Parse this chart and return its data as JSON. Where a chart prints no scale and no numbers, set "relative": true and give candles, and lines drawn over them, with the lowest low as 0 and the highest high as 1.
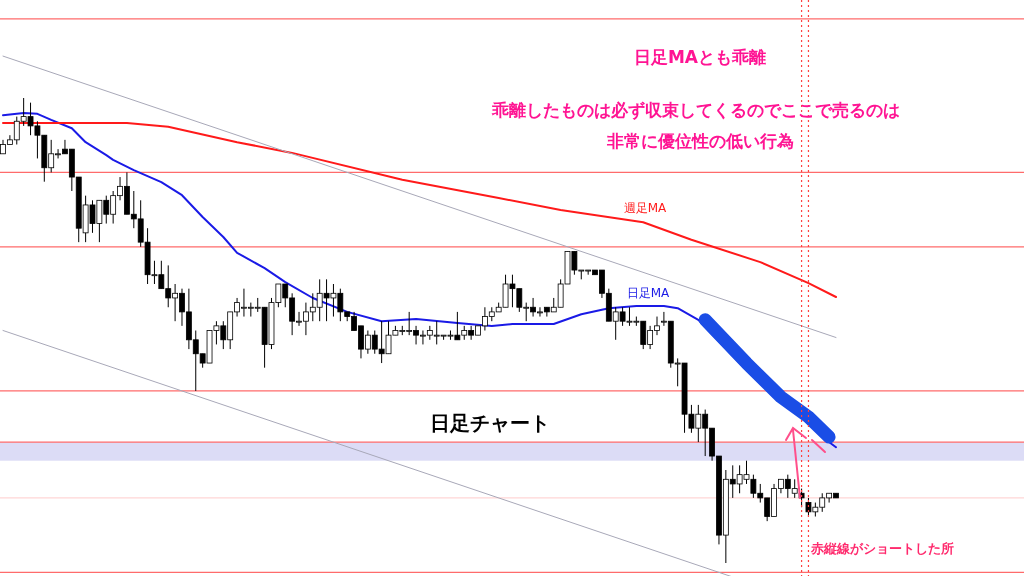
{
  "chart_data": {
    "type": "candlestick",
    "relative": true,
    "tick_labels": false,
    "grid": false,
    "categories": [
      null,
      null,
      null,
      null,
      null,
      null,
      null,
      null,
      null,
      null,
      null,
      null,
      null,
      null,
      null,
      null,
      null,
      null,
      null,
      null,
      null,
      null,
      null,
      null,
      null,
      null,
      null,
      null,
      null,
      null,
      null,
      null,
      null,
      null,
      null,
      null,
      null,
      null,
      null,
      null,
      null,
      null,
      null,
      null,
      null,
      null,
      null,
      null,
      null,
      null,
      null,
      null,
      null,
      null,
      null,
      null,
      null,
      null,
      null,
      null,
      null,
      null,
      null,
      null,
      null,
      null,
      null,
      null,
      null,
      null,
      null,
      null,
      null,
      null,
      null,
      null,
      null,
      null,
      null,
      null,
      null,
      null,
      null,
      null,
      null,
      null,
      null,
      null,
      null,
      null,
      null,
      null,
      null,
      null,
      null,
      null,
      null,
      null,
      null,
      null,
      null,
      null,
      null,
      null,
      null,
      null,
      null,
      null,
      null,
      null,
      null,
      null,
      null,
      null,
      null,
      null,
      null,
      null,
      null,
      null,
      null,
      null
    ],
    "ohlc": [
      [
        0.88,
        0.91,
        0.88,
        0.9
      ],
      [
        0.9,
        0.92,
        0.9,
        0.91
      ],
      [
        0.91,
        0.96,
        0.9,
        0.95
      ],
      [
        0.95,
        1.0,
        0.94,
        0.96
      ],
      [
        0.96,
        0.99,
        0.92,
        0.94
      ],
      [
        0.94,
        0.95,
        0.87,
        0.92
      ],
      [
        0.92,
        0.92,
        0.82,
        0.85
      ],
      [
        0.85,
        0.91,
        0.84,
        0.88
      ],
      [
        0.88,
        0.89,
        0.87,
        0.88
      ],
      [
        0.89,
        0.91,
        0.88,
        0.88
      ],
      [
        0.89,
        0.89,
        0.8,
        0.83
      ],
      [
        0.83,
        0.83,
        0.69,
        0.72
      ],
      [
        0.71,
        0.79,
        0.69,
        0.77
      ],
      [
        0.77,
        0.78,
        0.71,
        0.73
      ],
      [
        0.73,
        0.78,
        0.69,
        0.78
      ],
      [
        0.78,
        0.79,
        0.73,
        0.75
      ],
      [
        0.75,
        0.8,
        0.73,
        0.79
      ],
      [
        0.79,
        0.83,
        0.78,
        0.81
      ],
      [
        0.81,
        0.84,
        0.75,
        0.75
      ],
      [
        0.75,
        0.8,
        0.72,
        0.74
      ],
      [
        0.74,
        0.78,
        0.68,
        0.69
      ],
      [
        0.69,
        0.72,
        0.6,
        0.62
      ],
      [
        0.62,
        0.65,
        0.6,
        0.62
      ],
      [
        0.62,
        0.65,
        0.59,
        0.59
      ],
      [
        0.59,
        0.64,
        0.55,
        0.57
      ],
      [
        0.57,
        0.6,
        0.52,
        0.58
      ],
      [
        0.58,
        0.59,
        0.51,
        0.54
      ],
      [
        0.54,
        0.59,
        0.46,
        0.48
      ],
      [
        0.48,
        0.5,
        0.37,
        0.45
      ],
      [
        0.45,
        0.45,
        0.42,
        0.43
      ],
      [
        0.43,
        0.5,
        0.43,
        0.5
      ],
      [
        0.5,
        0.52,
        0.47,
        0.51
      ],
      [
        0.51,
        0.52,
        0.46,
        0.48
      ],
      [
        0.48,
        0.54,
        0.46,
        0.54
      ],
      [
        0.54,
        0.57,
        0.53,
        0.56
      ],
      [
        0.55,
        0.59,
        0.53,
        0.55
      ],
      [
        0.55,
        0.56,
        0.53,
        0.55
      ],
      [
        0.55,
        0.57,
        0.54,
        0.55
      ],
      [
        0.55,
        0.55,
        0.42,
        0.47
      ],
      [
        0.47,
        0.57,
        0.46,
        0.56
      ],
      [
        0.56,
        0.6,
        0.55,
        0.6
      ],
      [
        0.6,
        0.6,
        0.55,
        0.57
      ],
      [
        0.57,
        0.58,
        0.49,
        0.52
      ],
      [
        0.52,
        0.54,
        0.51,
        0.52
      ],
      [
        0.52,
        0.56,
        0.49,
        0.54
      ],
      [
        0.54,
        0.58,
        0.52,
        0.55
      ],
      [
        0.55,
        0.61,
        0.52,
        0.58
      ],
      [
        0.58,
        0.61,
        0.52,
        0.57
      ],
      [
        0.57,
        0.6,
        0.53,
        0.58
      ],
      [
        0.58,
        0.59,
        0.52,
        0.54
      ],
      [
        0.54,
        0.54,
        0.52,
        0.53
      ],
      [
        0.53,
        0.54,
        0.5,
        0.5
      ],
      [
        0.51,
        0.51,
        0.44,
        0.46
      ],
      [
        0.46,
        0.5,
        0.45,
        0.49
      ],
      [
        0.49,
        0.5,
        0.45,
        0.46
      ],
      [
        0.46,
        0.52,
        0.43,
        0.45
      ],
      [
        0.45,
        0.52,
        0.45,
        0.49
      ],
      [
        0.49,
        0.51,
        0.49,
        0.5
      ],
      [
        0.5,
        0.51,
        0.49,
        0.5
      ],
      [
        0.5,
        0.54,
        0.49,
        0.5
      ],
      [
        0.5,
        0.51,
        0.47,
        0.49
      ],
      [
        0.49,
        0.5,
        0.47,
        0.49
      ],
      [
        0.49,
        0.51,
        0.48,
        0.5
      ],
      [
        0.49,
        0.52,
        0.47,
        0.49
      ],
      [
        0.49,
        0.49,
        0.48,
        0.49
      ],
      [
        0.49,
        0.5,
        0.48,
        0.49
      ],
      [
        0.49,
        0.54,
        0.48,
        0.48
      ],
      [
        0.49,
        0.51,
        0.48,
        0.5
      ],
      [
        0.5,
        0.51,
        0.48,
        0.49
      ],
      [
        0.49,
        0.51,
        0.49,
        0.51
      ],
      [
        0.51,
        0.55,
        0.5,
        0.53
      ],
      [
        0.53,
        0.55,
        0.52,
        0.54
      ],
      [
        0.54,
        0.56,
        0.54,
        0.55
      ],
      [
        0.55,
        0.62,
        0.55,
        0.6
      ],
      [
        0.6,
        0.62,
        0.55,
        0.59
      ],
      [
        0.59,
        0.59,
        0.54,
        0.55
      ],
      [
        0.55,
        0.56,
        0.52,
        0.55
      ],
      [
        0.55,
        0.57,
        0.53,
        0.54
      ],
      [
        0.54,
        0.55,
        0.53,
        0.54
      ],
      [
        0.55,
        0.55,
        0.53,
        0.54
      ],
      [
        0.54,
        0.57,
        0.54,
        0.55
      ],
      [
        0.55,
        0.61,
        0.55,
        0.6
      ],
      [
        0.6,
        0.67,
        0.6,
        0.67
      ],
      [
        0.67,
        0.67,
        0.62,
        0.63
      ],
      [
        0.63,
        0.63,
        0.61,
        0.63
      ],
      [
        0.63,
        0.63,
        0.62,
        0.63
      ],
      [
        0.63,
        0.63,
        0.62,
        0.62
      ],
      [
        0.63,
        0.63,
        0.57,
        0.58
      ],
      [
        0.58,
        0.59,
        0.52,
        0.52
      ],
      [
        0.52,
        0.55,
        0.48,
        0.54
      ],
      [
        0.54,
        0.55,
        0.51,
        0.52
      ],
      [
        0.52,
        0.55,
        0.51,
        0.52
      ],
      [
        0.52,
        0.53,
        0.51,
        0.52
      ],
      [
        0.52,
        0.52,
        0.46,
        0.47
      ],
      [
        0.47,
        0.51,
        0.46,
        0.5
      ],
      [
        0.5,
        0.53,
        0.49,
        0.51
      ],
      [
        0.52,
        0.54,
        0.51,
        0.52
      ],
      [
        0.52,
        0.52,
        0.42,
        0.43
      ],
      [
        0.43,
        0.44,
        0.38,
        0.43
      ],
      [
        0.43,
        0.43,
        0.28,
        0.32
      ],
      [
        0.32,
        0.34,
        0.28,
        0.29
      ],
      [
        0.29,
        0.34,
        0.26,
        0.32
      ],
      [
        0.32,
        0.33,
        0.23,
        0.29
      ],
      [
        0.29,
        0.29,
        0.22,
        0.23
      ],
      [
        0.23,
        0.23,
        0.04,
        0.06
      ],
      [
        0.06,
        0.2,
        0.0,
        0.18
      ],
      [
        0.18,
        0.21,
        0.14,
        0.17
      ],
      [
        0.17,
        0.21,
        0.15,
        0.19
      ],
      [
        0.18,
        0.22,
        0.17,
        0.19
      ],
      [
        0.18,
        0.19,
        0.14,
        0.15
      ],
      [
        0.15,
        0.17,
        0.13,
        0.14
      ],
      [
        0.14,
        0.14,
        0.09,
        0.1
      ],
      [
        0.1,
        0.17,
        0.1,
        0.16
      ],
      [
        0.16,
        0.18,
        0.15,
        0.18
      ],
      [
        0.18,
        0.19,
        0.14,
        0.16
      ],
      [
        0.15,
        0.18,
        0.14,
        0.16
      ],
      [
        0.15,
        0.16,
        0.12,
        0.14
      ],
      [
        0.13,
        0.14,
        0.1,
        0.11
      ],
      [
        0.11,
        0.13,
        0.1,
        0.12
      ],
      [
        0.12,
        0.15,
        0.11,
        0.14
      ],
      [
        0.14,
        0.15,
        0.13,
        0.15
      ],
      [
        0.15,
        0.15,
        0.14,
        0.14
      ]
    ],
    "series": [
      {
        "name": "日足MA",
        "type": "line",
        "color": "#1a1ae6",
        "values": [
          0.963,
          null,
          null,
          0.968,
          null,
          0.966,
          null,
          0.953,
          null,
          null,
          0.935,
          null,
          0.905,
          null,
          null,
          0.877,
          0.867,
          null,
          null,
          0.845,
          null,
          null,
          null,
          0.819,
          null,
          null,
          0.791,
          null,
          null,
          0.744,
          null,
          null,
          0.701,
          null,
          0.667,
          null,
          null,
          null,
          0.634,
          null,
          null,
          0.604,
          null,
          null,
          null,
          0.57,
          null,
          null,
          null,
          null,
          0.54,
          null,
          null,
          null,
          null,
          0.52,
          null,
          null,
          null,
          null,
          0.525,
          null,
          null,
          null,
          null,
          null,
          0.516,
          null,
          null,
          null,
          null,
          0.51,
          null,
          null,
          0.514,
          null,
          null,
          null,
          null,
          null,
          0.514,
          null,
          null,
          null,
          0.535,
          null,
          null,
          null,
          0.548,
          null,
          null,
          null,
          0.553,
          null,
          null,
          null,
          0.553,
          null,
          0.548,
          null,
          null,
          0.523,
          null,
          null,
          null,
          null,
          null,
          0.43,
          null,
          null,
          null,
          null,
          0.357,
          null,
          null,
          null,
          0.314,
          null,
          null,
          0.271,
          null,
          0.249
        ]
      },
      {
        "name": "週足MA",
        "type": "line",
        "color": "#ff1a1a",
        "values": [
          0.946,
          null,
          null,
          null,
          null,
          null,
          null,
          null,
          null,
          null,
          null,
          null,
          null,
          null,
          null,
          null,
          null,
          null,
          0.946,
          null,
          null,
          null,
          null,
          null,
          0.938,
          null,
          null,
          null,
          null,
          null,
          null,
          null,
          null,
          null,
          0.905,
          null,
          null,
          null,
          null,
          null,
          null,
          null,
          0.882,
          null,
          null,
          null,
          null,
          null,
          null,
          null,
          null,
          null,
          null,
          null,
          null,
          null,
          null,
          null,
          0.824,
          null,
          null,
          null,
          null,
          null,
          null,
          null,
          null,
          null,
          null,
          null,
          null,
          null,
          0.785,
          null,
          null,
          null,
          null,
          null,
          null,
          null,
          null,
          0.759,
          null,
          null,
          null,
          null,
          null,
          null,
          null,
          null,
          null,
          null,
          null,
          0.733,
          null,
          null,
          null,
          null,
          null,
          null,
          0.695,
          null,
          null,
          null,
          null,
          null,
          null,
          null,
          null,
          null,
          0.647,
          null,
          null,
          null,
          null,
          null,
          null,
          0.602,
          null,
          null,
          null,
          0.572
        ]
      },
      {
        "type": "line",
        "color": "#a8a8b8",
        "values": [
          1.09,
          null,
          null,
          null,
          null,
          null,
          null,
          null,
          null,
          null,
          null,
          null,
          null,
          null,
          null,
          null,
          null,
          null,
          null,
          null,
          null,
          null,
          null,
          null,
          null,
          null,
          null,
          null,
          null,
          null,
          null,
          null,
          null,
          null,
          null,
          null,
          null,
          null,
          null,
          null,
          null,
          null,
          null,
          null,
          null,
          null,
          null,
          null,
          null,
          null,
          null,
          null,
          null,
          null,
          null,
          null,
          null,
          null,
          null,
          null,
          null,
          null,
          null,
          null,
          null,
          null,
          null,
          null,
          null,
          null,
          null,
          null,
          null,
          null,
          null,
          null,
          null,
          null,
          null,
          null,
          null,
          null,
          null,
          null,
          null,
          null,
          null,
          null,
          null,
          null,
          null,
          null,
          null,
          null,
          null,
          null,
          null,
          null,
          null,
          null,
          null,
          null,
          null,
          null,
          null,
          null,
          null,
          null,
          null,
          null,
          null,
          null,
          null,
          null,
          null,
          null,
          null,
          null,
          null,
          null,
          null,
          0.485
        ]
      },
      {
        "type": "line",
        "color": "#a8a8b8",
        "values": [
          0.5,
          null,
          null,
          null,
          null,
          null,
          null,
          null,
          null,
          null,
          null,
          null,
          null,
          null,
          null,
          null,
          null,
          null,
          null,
          null,
          null,
          null,
          null,
          null,
          null,
          null,
          null,
          null,
          null,
          null,
          null,
          null,
          null,
          null,
          null,
          null,
          null,
          null,
          null,
          null,
          null,
          null,
          null,
          null,
          null,
          null,
          null,
          null,
          null,
          null,
          null,
          null,
          null,
          null,
          null,
          null,
          null,
          null,
          null,
          null,
          null,
          null,
          null,
          null,
          null,
          null,
          null,
          null,
          null,
          null,
          null,
          null,
          null,
          null,
          null,
          null,
          null,
          null,
          null,
          null,
          null,
          null,
          null,
          null,
          null,
          null,
          null,
          null,
          null,
          null,
          null,
          null,
          null,
          null,
          null,
          null,
          null,
          null,
          null,
          null,
          null,
          null,
          null,
          null,
          null,
          null,
          -0.03,
          null,
          null,
          null,
          null,
          null,
          null,
          null,
          null,
          null,
          null,
          null,
          null,
          null,
          null,
          null
        ]
      }
    ],
    "ref_lines": [
      {
        "axis": "y",
        "value": 1.17,
        "color": "#ff6b6b"
      },
      {
        "axis": "y",
        "value": 0.84,
        "color": "#ff6b6b"
      },
      {
        "axis": "y",
        "value": 0.68,
        "color": "#ff6b6b"
      },
      {
        "axis": "y",
        "value": 0.37,
        "color": "#ff6b6b"
      },
      {
        "axis": "y",
        "value": 0.26,
        "color": "#ff6b6b"
      },
      {
        "axis": "y",
        "value": 0.14,
        "color": "#ffd6d6"
      },
      {
        "axis": "y",
        "value": -0.02,
        "color": "#ff6b6b"
      }
    ],
    "bands": [
      {
        "axis": "y",
        "from": 0.22,
        "to": 0.26,
        "color": "#dcdcf6"
      }
    ],
    "annotations": [
      "日足MAとも乖離",
      "乖離したものは必ず収束してくるのでここで売るのは",
      "非常に優位性の低い行為",
      "日足チャート",
      "赤縦線がショートした所"
    ]
  }
}
